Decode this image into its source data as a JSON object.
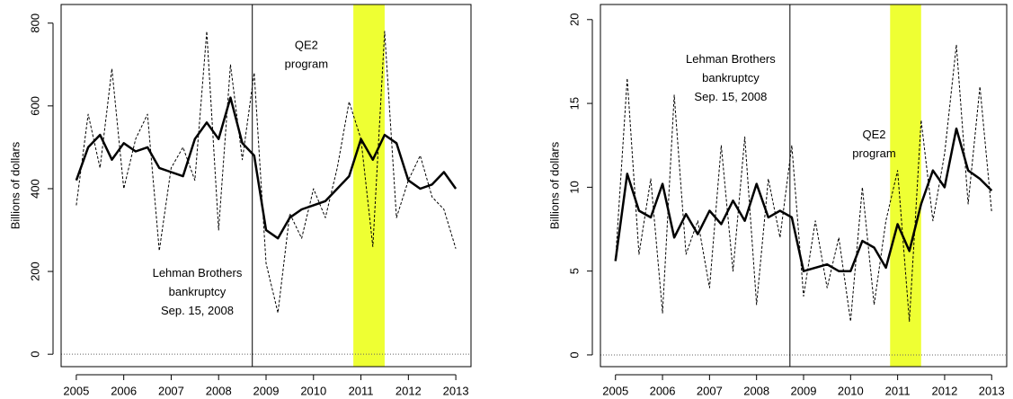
{
  "chart_data": [
    {
      "type": "line",
      "ylabel": "Billions of dollars",
      "x": [
        2005,
        2005.25,
        2005.5,
        2005.75,
        2006,
        2006.25,
        2006.5,
        2006.75,
        2007,
        2007.25,
        2007.5,
        2007.75,
        2008,
        2008.25,
        2008.5,
        2008.75,
        2009,
        2009.25,
        2009.5,
        2009.75,
        2010,
        2010.25,
        2010.5,
        2010.75,
        2011,
        2011.25,
        2011.5,
        2011.75,
        2012,
        2012.25,
        2012.5,
        2012.75,
        2013
      ],
      "series": [
        {
          "color": "#000000",
          "dashed": true,
          "width": 1,
          "values": [
            360,
            580,
            450,
            690,
            400,
            520,
            580,
            250,
            450,
            500,
            420,
            780,
            300,
            700,
            470,
            680,
            220,
            100,
            340,
            280,
            400,
            330,
            450,
            610,
            520,
            260,
            780,
            330,
            420,
            480,
            380,
            350,
            255
          ]
        },
        {
          "color": "#000000",
          "dashed": false,
          "width": 2.5,
          "values": [
            420,
            500,
            530,
            470,
            510,
            490,
            500,
            450,
            440,
            430,
            520,
            560,
            520,
            620,
            510,
            480,
            300,
            280,
            330,
            350,
            360,
            370,
            400,
            430,
            520,
            470,
            530,
            510,
            420,
            400,
            410,
            440,
            400
          ]
        }
      ],
      "xlim": [
        2004.68,
        2013.32
      ],
      "xticks": [
        2005,
        2006,
        2007,
        2008,
        2009,
        2010,
        2011,
        2012,
        2013
      ],
      "ylim": [
        -30,
        845
      ],
      "yticks": [
        0,
        200,
        400,
        600,
        800
      ],
      "hline": 0,
      "vline": 2008.71,
      "shade": [
        2010.84,
        2011.5
      ],
      "shade_color": "#eeff33",
      "annotations": [
        {
          "lines": [
            "QE2",
            "program"
          ],
          "x": 2009.85,
          "y": 745
        },
        {
          "lines": [
            "Lehman Brothers",
            "bankruptcy",
            "Sep. 15, 2008"
          ],
          "x": 2007.55,
          "y": 195
        }
      ]
    },
    {
      "type": "line",
      "ylabel": "Billions of dollars",
      "x": [
        2005,
        2005.25,
        2005.5,
        2005.75,
        2006,
        2006.25,
        2006.5,
        2006.75,
        2007,
        2007.25,
        2007.5,
        2007.75,
        2008,
        2008.25,
        2008.5,
        2008.75,
        2009,
        2009.25,
        2009.5,
        2009.75,
        2010,
        2010.25,
        2010.5,
        2010.75,
        2011,
        2011.25,
        2011.5,
        2011.75,
        2012,
        2012.25,
        2012.5,
        2012.75,
        2013
      ],
      "series": [
        {
          "color": "#000000",
          "dashed": true,
          "width": 1,
          "values": [
            5.6,
            16.5,
            6,
            10.5,
            2.5,
            15.5,
            6,
            8,
            4,
            12.5,
            5,
            13,
            3,
            10.5,
            7,
            12.5,
            3.5,
            8,
            4,
            7,
            2,
            10,
            3,
            8,
            11,
            2,
            14,
            8,
            12,
            18.5,
            9,
            16,
            8.5
          ]
        },
        {
          "color": "#000000",
          "dashed": false,
          "width": 2.5,
          "values": [
            5.6,
            10.8,
            8.6,
            8.2,
            10.2,
            7,
            8.4,
            7.2,
            8.6,
            7.8,
            9.2,
            8,
            10.2,
            8.2,
            8.6,
            8.2,
            5,
            5.2,
            5.4,
            5,
            5,
            6.8,
            6.4,
            5.2,
            7.8,
            6.2,
            9,
            11,
            10,
            13.5,
            11,
            10.5,
            9.8
          ]
        }
      ],
      "xlim": [
        2004.68,
        2013.32
      ],
      "xticks": [
        2005,
        2006,
        2007,
        2008,
        2009,
        2010,
        2011,
        2012,
        2013
      ],
      "ylim": [
        -0.7,
        20.9
      ],
      "yticks": [
        0,
        5,
        10,
        15,
        20
      ],
      "hline": 0,
      "vline": 2008.71,
      "shade": [
        2010.84,
        2011.5
      ],
      "shade_color": "#eeff33",
      "annotations": [
        {
          "lines": [
            "Lehman Brothers",
            "bankruptcy",
            "Sep. 15, 2008"
          ],
          "x": 2007.45,
          "y": 17.6
        },
        {
          "lines": [
            "QE2",
            "program"
          ],
          "x": 2010.5,
          "y": 13.1
        }
      ]
    }
  ]
}
